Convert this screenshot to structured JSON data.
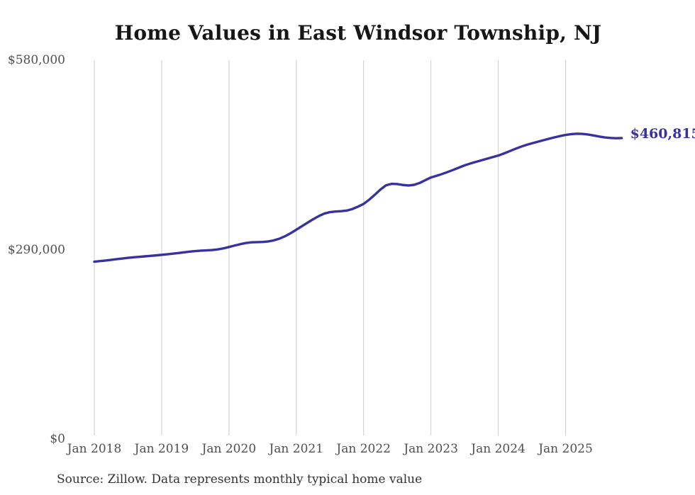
{
  "page": {
    "title": "Home Values in East Windsor Township, NJ",
    "source_note": "Source: Zillow. Data represents monthly typical home value",
    "end_label": "$460,815"
  },
  "colors": {
    "line": "#38329f",
    "end_label": "#38329f",
    "grid": "#cccccc",
    "tick_text": "#4f4f4f",
    "title_text": "#161616",
    "source_text": "#333333",
    "background": "#ffffff"
  },
  "chart_data": {
    "type": "line",
    "title": "Home Values in East Windsor Township, NJ",
    "xlabel": "",
    "ylabel": "",
    "x_ticks": [
      "Jan 2018",
      "Jan 2019",
      "Jan 2020",
      "Jan 2021",
      "Jan 2022",
      "Jan 2023",
      "Jan 2024",
      "Jan 2025"
    ],
    "y_ticks": [
      {
        "label": "$0",
        "value": 0
      },
      {
        "label": "$290,000",
        "value": 290000
      },
      {
        "label": "$580,000",
        "value": 580000
      }
    ],
    "ylim": [
      0,
      580000
    ],
    "grid": "vertical",
    "legend": "none",
    "x_start": "2018-01",
    "x_interval": "monthly",
    "x_end": "2025-11",
    "series": [
      {
        "name": "Monthly typical home value",
        "values": [
          271500,
          272400,
          273300,
          274300,
          275400,
          276400,
          277400,
          278300,
          279000,
          279700,
          280400,
          281200,
          282000,
          282900,
          283800,
          284800,
          285900,
          286900,
          287800,
          288400,
          288900,
          289400,
          290300,
          291900,
          294000,
          296200,
          298300,
          300100,
          301200,
          301500,
          301700,
          302500,
          304200,
          306800,
          310500,
          315200,
          320500,
          325800,
          331200,
          336500,
          341300,
          345200,
          347400,
          348300,
          348900,
          349800,
          352200,
          355800,
          360000,
          366500,
          374000,
          382000,
          388500,
          390700,
          390300,
          389000,
          388200,
          389200,
          392100,
          396300,
          400500,
          403000,
          405800,
          408900,
          412200,
          415600,
          419000,
          421800,
          424300,
          426700,
          429200,
          431600,
          434000,
          437200,
          440600,
          444100,
          447400,
          450300,
          452800,
          455100,
          457400,
          459700,
          461800,
          463800,
          465600,
          466800,
          467500,
          467200,
          466200,
          464700,
          463100,
          461800,
          461000,
          460600,
          460815
        ],
        "end_value": 460815
      }
    ],
    "annotations": [
      {
        "text": "$460,815",
        "value": 460815,
        "position": "line-end"
      }
    ]
  }
}
